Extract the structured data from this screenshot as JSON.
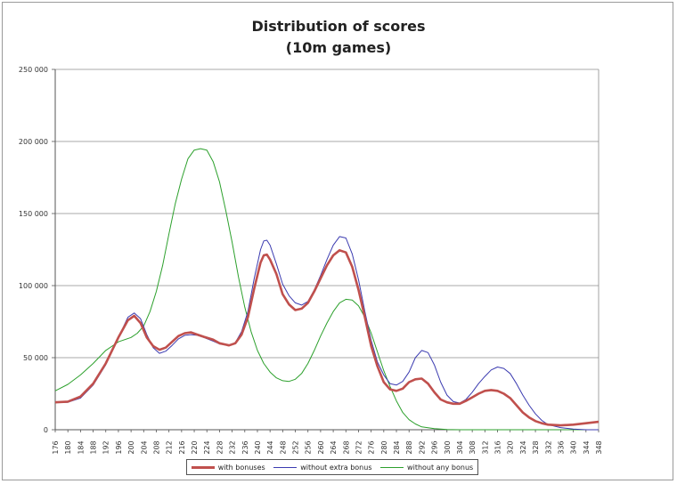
{
  "chart_data": {
    "type": "line",
    "title": "Distribution of scores",
    "subtitle": "(10m games)",
    "xlabel": "",
    "ylabel": "",
    "xlim": [
      176,
      348
    ],
    "ylim": [
      0,
      250000
    ],
    "yticks": [
      0,
      50000,
      100000,
      150000,
      200000,
      250000
    ],
    "ytick_labels": [
      "0",
      "50 000",
      "100 000",
      "150 000",
      "200 000",
      "250 000"
    ],
    "xticks": [
      176,
      180,
      184,
      188,
      192,
      196,
      200,
      204,
      208,
      212,
      216,
      220,
      224,
      228,
      232,
      236,
      240,
      244,
      248,
      252,
      256,
      260,
      264,
      268,
      272,
      276,
      280,
      284,
      288,
      292,
      296,
      300,
      304,
      308,
      312,
      316,
      320,
      324,
      328,
      332,
      336,
      340,
      344,
      348
    ],
    "grid": "horizontal",
    "legend": "bottom",
    "series": [
      {
        "name": "with bonuses",
        "color": "#c0504d",
        "points": [
          [
            176,
            19000
          ],
          [
            180,
            19500
          ],
          [
            184,
            23000
          ],
          [
            188,
            32000
          ],
          [
            192,
            46000
          ],
          [
            196,
            64000
          ],
          [
            199,
            76000
          ],
          [
            201,
            79000
          ],
          [
            203,
            74000
          ],
          [
            205,
            64000
          ],
          [
            207,
            58000
          ],
          [
            209,
            55500
          ],
          [
            211,
            57000
          ],
          [
            213,
            61000
          ],
          [
            215,
            65000
          ],
          [
            217,
            67000
          ],
          [
            219,
            67500
          ],
          [
            221,
            66000
          ],
          [
            223,
            64500
          ],
          [
            226,
            62500
          ],
          [
            228,
            60000
          ],
          [
            231,
            58500
          ],
          [
            233,
            60000
          ],
          [
            235,
            66000
          ],
          [
            237,
            78000
          ],
          [
            239,
            98000
          ],
          [
            241,
            116000
          ],
          [
            242,
            121000
          ],
          [
            243,
            121500
          ],
          [
            244,
            118000
          ],
          [
            246,
            108000
          ],
          [
            248,
            94000
          ],
          [
            250,
            87000
          ],
          [
            252,
            83000
          ],
          [
            254,
            84000
          ],
          [
            256,
            88000
          ],
          [
            258,
            96000
          ],
          [
            260,
            105000
          ],
          [
            262,
            114000
          ],
          [
            264,
            121000
          ],
          [
            266,
            124500
          ],
          [
            268,
            123000
          ],
          [
            270,
            113000
          ],
          [
            272,
            97000
          ],
          [
            274,
            78000
          ],
          [
            276,
            58000
          ],
          [
            278,
            44000
          ],
          [
            280,
            33000
          ],
          [
            282,
            28000
          ],
          [
            284,
            27000
          ],
          [
            286,
            28500
          ],
          [
            288,
            33000
          ],
          [
            290,
            35000
          ],
          [
            292,
            35500
          ],
          [
            294,
            32000
          ],
          [
            296,
            26000
          ],
          [
            298,
            21000
          ],
          [
            300,
            19000
          ],
          [
            302,
            18000
          ],
          [
            304,
            18000
          ],
          [
            306,
            20000
          ],
          [
            308,
            22500
          ],
          [
            310,
            25000
          ],
          [
            312,
            27000
          ],
          [
            314,
            27500
          ],
          [
            316,
            27000
          ],
          [
            318,
            25000
          ],
          [
            320,
            22000
          ],
          [
            322,
            17000
          ],
          [
            324,
            12000
          ],
          [
            326,
            8500
          ],
          [
            328,
            6000
          ],
          [
            330,
            4500
          ],
          [
            332,
            3500
          ],
          [
            336,
            3000
          ],
          [
            340,
            3500
          ],
          [
            344,
            4500
          ],
          [
            348,
            5500
          ]
        ]
      },
      {
        "name": "without extra bonus",
        "color": "#3b3bb0",
        "points": [
          [
            176,
            19000
          ],
          [
            180,
            19000
          ],
          [
            184,
            22000
          ],
          [
            188,
            31000
          ],
          [
            192,
            45000
          ],
          [
            196,
            64000
          ],
          [
            199,
            78000
          ],
          [
            201,
            81000
          ],
          [
            203,
            77000
          ],
          [
            205,
            66000
          ],
          [
            207,
            57000
          ],
          [
            209,
            53000
          ],
          [
            211,
            54500
          ],
          [
            213,
            58500
          ],
          [
            215,
            63000
          ],
          [
            217,
            65500
          ],
          [
            219,
            66000
          ],
          [
            221,
            65500
          ],
          [
            223,
            64000
          ],
          [
            226,
            61500
          ],
          [
            228,
            59500
          ],
          [
            231,
            58500
          ],
          [
            233,
            60500
          ],
          [
            235,
            68000
          ],
          [
            237,
            82000
          ],
          [
            239,
            105000
          ],
          [
            241,
            125000
          ],
          [
            242,
            131000
          ],
          [
            243,
            131500
          ],
          [
            244,
            128000
          ],
          [
            246,
            115000
          ],
          [
            248,
            101000
          ],
          [
            250,
            93000
          ],
          [
            252,
            88000
          ],
          [
            254,
            86500
          ],
          [
            256,
            89000
          ],
          [
            258,
            97000
          ],
          [
            260,
            107000
          ],
          [
            262,
            118000
          ],
          [
            264,
            128000
          ],
          [
            266,
            134000
          ],
          [
            268,
            133000
          ],
          [
            270,
            122000
          ],
          [
            272,
            104000
          ],
          [
            274,
            82000
          ],
          [
            276,
            62000
          ],
          [
            278,
            47000
          ],
          [
            280,
            38000
          ],
          [
            282,
            32000
          ],
          [
            284,
            31000
          ],
          [
            286,
            33500
          ],
          [
            288,
            40000
          ],
          [
            290,
            50000
          ],
          [
            292,
            55000
          ],
          [
            294,
            53500
          ],
          [
            296,
            45000
          ],
          [
            298,
            33000
          ],
          [
            300,
            24000
          ],
          [
            302,
            19500
          ],
          [
            304,
            18500
          ],
          [
            306,
            21000
          ],
          [
            308,
            26000
          ],
          [
            310,
            32000
          ],
          [
            312,
            37000
          ],
          [
            314,
            41500
          ],
          [
            316,
            43500
          ],
          [
            318,
            42500
          ],
          [
            320,
            39000
          ],
          [
            322,
            32000
          ],
          [
            324,
            24000
          ],
          [
            326,
            17000
          ],
          [
            328,
            11000
          ],
          [
            330,
            6500
          ],
          [
            332,
            3500
          ],
          [
            336,
            1500
          ],
          [
            340,
            500
          ],
          [
            344,
            0
          ],
          [
            348,
            0
          ]
        ]
      },
      {
        "name": "without any bonus",
        "color": "#2ca02c",
        "points": [
          [
            176,
            27000
          ],
          [
            180,
            31500
          ],
          [
            184,
            38000
          ],
          [
            188,
            46000
          ],
          [
            192,
            55000
          ],
          [
            196,
            61000
          ],
          [
            200,
            64000
          ],
          [
            202,
            67000
          ],
          [
            204,
            72000
          ],
          [
            206,
            82000
          ],
          [
            208,
            96000
          ],
          [
            210,
            114000
          ],
          [
            212,
            136000
          ],
          [
            214,
            157000
          ],
          [
            216,
            174000
          ],
          [
            218,
            188000
          ],
          [
            220,
            194000
          ],
          [
            222,
            195000
          ],
          [
            224,
            194000
          ],
          [
            226,
            186000
          ],
          [
            228,
            172000
          ],
          [
            230,
            152000
          ],
          [
            232,
            130000
          ],
          [
            234,
            106000
          ],
          [
            236,
            85000
          ],
          [
            238,
            68000
          ],
          [
            240,
            55000
          ],
          [
            242,
            46000
          ],
          [
            244,
            40000
          ],
          [
            246,
            36000
          ],
          [
            248,
            34000
          ],
          [
            250,
            33500
          ],
          [
            252,
            35000
          ],
          [
            254,
            39000
          ],
          [
            256,
            46000
          ],
          [
            258,
            55000
          ],
          [
            260,
            65000
          ],
          [
            262,
            74000
          ],
          [
            264,
            82000
          ],
          [
            266,
            88000
          ],
          [
            268,
            90500
          ],
          [
            270,
            90000
          ],
          [
            272,
            86000
          ],
          [
            274,
            78000
          ],
          [
            276,
            67000
          ],
          [
            278,
            54000
          ],
          [
            280,
            41000
          ],
          [
            282,
            30000
          ],
          [
            284,
            20000
          ],
          [
            286,
            12000
          ],
          [
            288,
            7000
          ],
          [
            290,
            4000
          ],
          [
            292,
            2000
          ],
          [
            296,
            800
          ],
          [
            300,
            200
          ],
          [
            304,
            0
          ],
          [
            348,
            0
          ]
        ]
      }
    ]
  }
}
